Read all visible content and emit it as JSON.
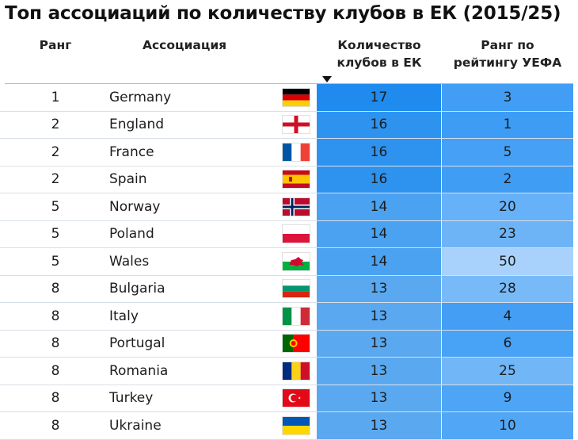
{
  "title": "Топ ассоциаций по количеству клубов в ЕК (2015/25)",
  "columns": {
    "rank": "Ранг",
    "association": "Ассоциация",
    "clubs_count": "Количество\nклубов в ЕК",
    "uefa_rank": "Ранг по\nрейтингу УЕФА"
  },
  "sort": {
    "column": "clubs_count",
    "direction": "descending",
    "icon": "sort-descending-icon"
  },
  "colors": {
    "count_scale": [
      "#5aa9f0",
      "#1f8bef"
    ],
    "uefa_scale": [
      "#a8d2fb",
      "#3d9cf4"
    ]
  },
  "rows": [
    {
      "rank": "1",
      "association": "Germany",
      "flag": "germany",
      "clubs": "17",
      "clubs_value": 17,
      "uefa": "3",
      "uefa_value": 3
    },
    {
      "rank": "2",
      "association": "England",
      "flag": "england",
      "clubs": "16",
      "clubs_value": 16,
      "uefa": "1",
      "uefa_value": 1
    },
    {
      "rank": "2",
      "association": "France",
      "flag": "france",
      "clubs": "16",
      "clubs_value": 16,
      "uefa": "5",
      "uefa_value": 5
    },
    {
      "rank": "2",
      "association": "Spain",
      "flag": "spain",
      "clubs": "16",
      "clubs_value": 16,
      "uefa": "2",
      "uefa_value": 2
    },
    {
      "rank": "5",
      "association": "Norway",
      "flag": "norway",
      "clubs": "14",
      "clubs_value": 14,
      "uefa": "20",
      "uefa_value": 20
    },
    {
      "rank": "5",
      "association": "Poland",
      "flag": "poland",
      "clubs": "14",
      "clubs_value": 14,
      "uefa": "23",
      "uefa_value": 23
    },
    {
      "rank": "5",
      "association": "Wales",
      "flag": "wales",
      "clubs": "14",
      "clubs_value": 14,
      "uefa": "50",
      "uefa_value": 50
    },
    {
      "rank": "8",
      "association": "Bulgaria",
      "flag": "bulgaria",
      "clubs": "13",
      "clubs_value": 13,
      "uefa": "28",
      "uefa_value": 28
    },
    {
      "rank": "8",
      "association": "Italy",
      "flag": "italy",
      "clubs": "13",
      "clubs_value": 13,
      "uefa": "4",
      "uefa_value": 4
    },
    {
      "rank": "8",
      "association": "Portugal",
      "flag": "portugal",
      "clubs": "13",
      "clubs_value": 13,
      "uefa": "6",
      "uefa_value": 6
    },
    {
      "rank": "8",
      "association": "Romania",
      "flag": "romania",
      "clubs": "13",
      "clubs_value": 13,
      "uefa": "25",
      "uefa_value": 25
    },
    {
      "rank": "8",
      "association": "Turkey",
      "flag": "turkey",
      "clubs": "13",
      "clubs_value": 13,
      "uefa": "9",
      "uefa_value": 9
    },
    {
      "rank": "8",
      "association": "Ukraine",
      "flag": "ukraine",
      "clubs": "13",
      "clubs_value": 13,
      "uefa": "10",
      "uefa_value": 10
    }
  ]
}
